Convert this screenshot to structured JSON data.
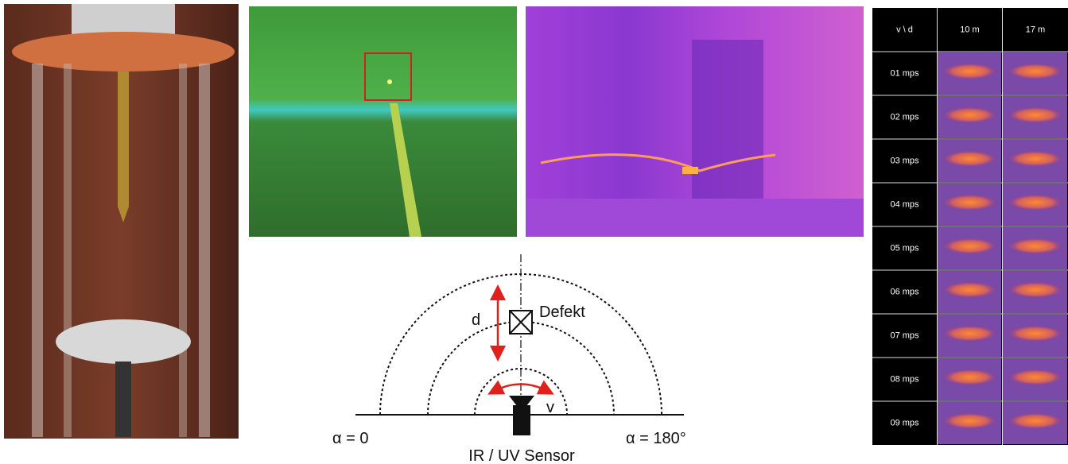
{
  "diagram": {
    "distance": "d",
    "defect": "Defekt",
    "velocity": "v",
    "angle_start": "α = 0",
    "angle_end": "α = 180°",
    "sensor": "IR / UV Sensor"
  },
  "table": {
    "header": [
      "v \\ d",
      "10 m",
      "17 m"
    ],
    "rows": [
      "01 mps",
      "02 mps",
      "03 mps",
      "04 mps",
      "05 mps",
      "06 mps",
      "07 mps",
      "08 mps",
      "09 mps"
    ]
  }
}
